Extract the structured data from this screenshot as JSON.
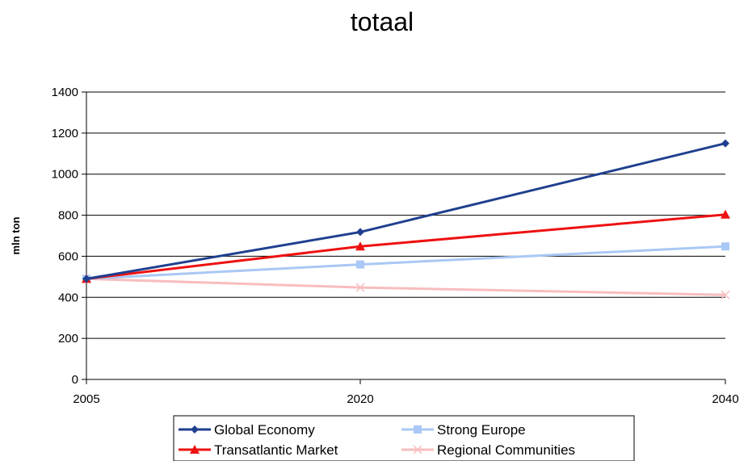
{
  "chart_data": {
    "type": "line",
    "title": "totaal",
    "xlabel": "",
    "ylabel": "mln ton",
    "x": [
      2005,
      2020,
      2040
    ],
    "x_tick_labels": [
      "2005",
      "2020",
      "2040"
    ],
    "ylim": [
      0,
      1400
    ],
    "y_ticks": [
      0,
      200,
      400,
      600,
      800,
      1000,
      1200,
      1400
    ],
    "grid": "horizontal",
    "legend_placement": "bottom",
    "series": [
      {
        "name": "Global Economy",
        "values": [
          490,
          718,
          1150
        ],
        "color": "#1F3F8F",
        "marker": "diamond"
      },
      {
        "name": "Strong Europe",
        "values": [
          490,
          560,
          648
        ],
        "color": "#A9C8F5",
        "marker": "square"
      },
      {
        "name": "Transatlantic Market",
        "values": [
          490,
          648,
          803
        ],
        "color": "#EE1111",
        "marker": "triangle"
      },
      {
        "name": "Regional Communities",
        "values": [
          490,
          448,
          412
        ],
        "color": "#F8BDBD",
        "marker": "x"
      }
    ]
  }
}
